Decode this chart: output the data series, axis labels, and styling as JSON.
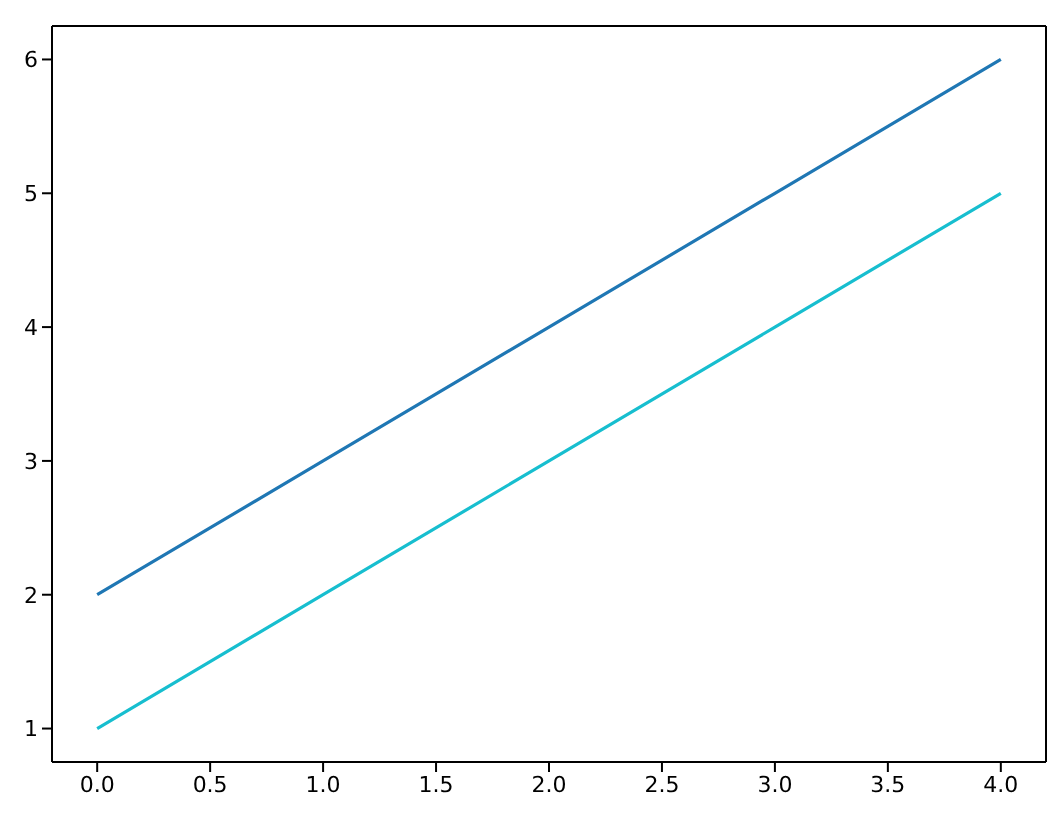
{
  "chart_data": {
    "type": "line",
    "x": [
      0,
      1,
      2,
      3,
      4
    ],
    "series": [
      {
        "color": "#1f77b4",
        "values": [
          2,
          3,
          4,
          5,
          6
        ]
      },
      {
        "color": "#17becf",
        "values": [
          1,
          2,
          3,
          4,
          5
        ]
      }
    ],
    "xlim": [
      -0.2,
      4.2
    ],
    "ylim": [
      0.75,
      6.25
    ],
    "xticks": [
      {
        "value": 0,
        "label": "0.0"
      },
      {
        "value": 0.5,
        "label": "0.5"
      },
      {
        "value": 1,
        "label": "1.0"
      },
      {
        "value": 1.5,
        "label": "1.5"
      },
      {
        "value": 2,
        "label": "2.0"
      },
      {
        "value": 2.5,
        "label": "2.5"
      },
      {
        "value": 3,
        "label": "3.0"
      },
      {
        "value": 3.5,
        "label": "3.5"
      },
      {
        "value": 4,
        "label": "4.0"
      }
    ],
    "yticks": [
      1,
      2,
      3,
      4,
      5,
      6
    ]
  }
}
